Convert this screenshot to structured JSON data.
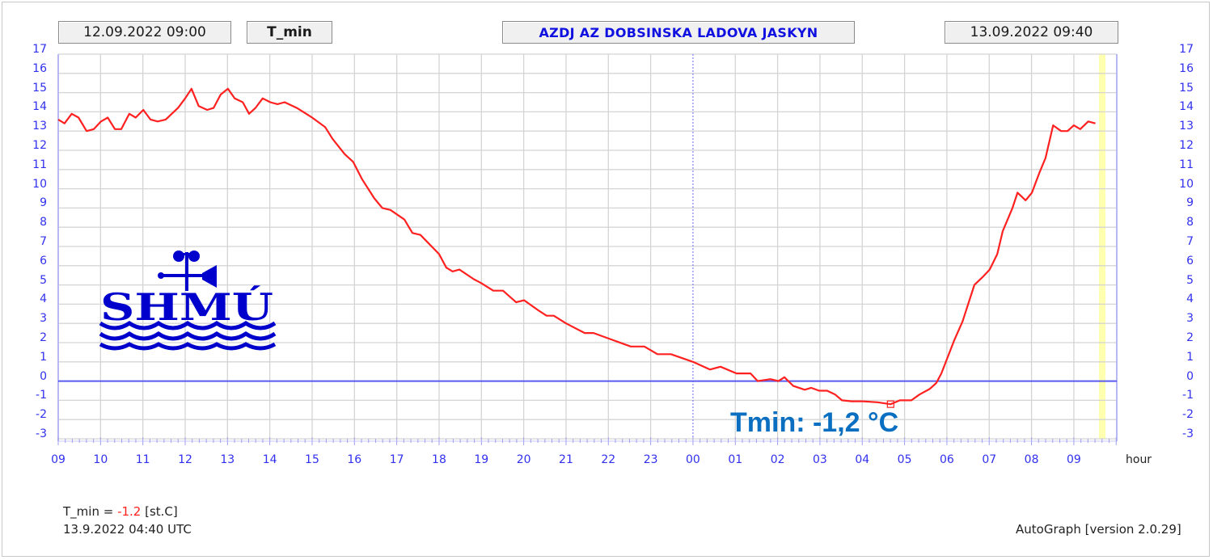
{
  "header": {
    "start_time": "12.09.2022 09:00",
    "parameter": "T_min",
    "station": "AZDJ AZ DOBSINSKA LADOVA JASKYN",
    "end_time": "13.09.2022 09:40"
  },
  "annotation": "Tmin: -1,2 °C",
  "footer": {
    "label_prefix": "T_min = ",
    "value": "-1.2",
    "unit": " [st.C]",
    "timestamp": "13.9.2022 04:40 UTC",
    "version": "AutoGraph [version 2.0.29]"
  },
  "logo": {
    "text": "SHMÚ",
    "color": "#0000cc"
  },
  "colors": {
    "series": "#ff2020",
    "axis_labels": "#3030ee",
    "zero_line": "#5a5af0",
    "grid": "#d4d4d4",
    "now_band": "#ffffb0",
    "annotation": "#0a6fc0"
  },
  "chart_data": {
    "type": "line",
    "title": "AZDJ AZ DOBSINSKA LADOVA JASKYN",
    "subtitle": "T_min",
    "xlabel": "hour",
    "ylabel": "st.C",
    "ylim": [
      -3,
      17
    ],
    "yticks": [
      17,
      16,
      15,
      14,
      13,
      12,
      11,
      10,
      9,
      8,
      7,
      6,
      5,
      4,
      3,
      2,
      1,
      0,
      -1,
      -2,
      -3
    ],
    "xticks": [
      "09",
      "10",
      "11",
      "12",
      "13",
      "14",
      "15",
      "16",
      "17",
      "18",
      "19",
      "20",
      "21",
      "22",
      "23",
      "00",
      "01",
      "02",
      "03",
      "04",
      "05",
      "06",
      "07",
      "08",
      "09"
    ],
    "x_range_hours": [
      0,
      25.03
    ],
    "x_unit": "hours since 12.09.2022 09:00",
    "grid": true,
    "legend": null,
    "minimum": {
      "label": "Tmin: -1,2 °C",
      "time": "13.9.2022 04:40 UTC",
      "value": -1.2,
      "x": 19.67
    },
    "now_marker_x": 24.67,
    "series": [
      {
        "name": "T_min",
        "points": [
          [
            0.0,
            13.6
          ],
          [
            0.15,
            13.4
          ],
          [
            0.32,
            13.9
          ],
          [
            0.48,
            13.7
          ],
          [
            0.67,
            13.0
          ],
          [
            0.84,
            13.1
          ],
          [
            1.01,
            13.5
          ],
          [
            1.17,
            13.7
          ],
          [
            1.34,
            13.1
          ],
          [
            1.49,
            13.1
          ],
          [
            1.68,
            13.9
          ],
          [
            1.83,
            13.7
          ],
          [
            2.01,
            14.1
          ],
          [
            2.18,
            13.6
          ],
          [
            2.35,
            13.5
          ],
          [
            2.54,
            13.6
          ],
          [
            2.83,
            14.2
          ],
          [
            3.0,
            14.7
          ],
          [
            3.15,
            15.2
          ],
          [
            3.32,
            14.3
          ],
          [
            3.52,
            14.1
          ],
          [
            3.67,
            14.2
          ],
          [
            3.84,
            14.9
          ],
          [
            4.01,
            15.2
          ],
          [
            4.17,
            14.7
          ],
          [
            4.36,
            14.5
          ],
          [
            4.51,
            13.9
          ],
          [
            4.66,
            14.2
          ],
          [
            4.83,
            14.7
          ],
          [
            5.01,
            14.5
          ],
          [
            5.18,
            14.4
          ],
          [
            5.35,
            14.5
          ],
          [
            5.64,
            14.2
          ],
          [
            6.0,
            13.7
          ],
          [
            6.31,
            13.2
          ],
          [
            6.48,
            12.6
          ],
          [
            6.77,
            11.8
          ],
          [
            6.97,
            11.4
          ],
          [
            7.18,
            10.5
          ],
          [
            7.47,
            9.5
          ],
          [
            7.66,
            9.0
          ],
          [
            7.85,
            8.9
          ],
          [
            8.18,
            8.4
          ],
          [
            8.37,
            7.7
          ],
          [
            8.56,
            7.6
          ],
          [
            9.0,
            6.6
          ],
          [
            9.17,
            5.9
          ],
          [
            9.32,
            5.7
          ],
          [
            9.48,
            5.8
          ],
          [
            9.82,
            5.3
          ],
          [
            9.99,
            5.1
          ],
          [
            10.28,
            4.7
          ],
          [
            10.51,
            4.7
          ],
          [
            10.82,
            4.1
          ],
          [
            11.01,
            4.2
          ],
          [
            11.33,
            3.7
          ],
          [
            11.54,
            3.4
          ],
          [
            11.71,
            3.4
          ],
          [
            12.0,
            3.0
          ],
          [
            12.44,
            2.5
          ],
          [
            12.65,
            2.5
          ],
          [
            13.15,
            2.1
          ],
          [
            13.53,
            1.8
          ],
          [
            13.85,
            1.8
          ],
          [
            14.16,
            1.4
          ],
          [
            14.48,
            1.4
          ],
          [
            15.0,
            1.0
          ],
          [
            15.4,
            0.6
          ],
          [
            15.65,
            0.75
          ],
          [
            16.03,
            0.4
          ],
          [
            16.36,
            0.4
          ],
          [
            16.53,
            0.0
          ],
          [
            16.83,
            0.1
          ],
          [
            17.02,
            0.0
          ],
          [
            17.16,
            0.2
          ],
          [
            17.37,
            -0.25
          ],
          [
            17.64,
            -0.45
          ],
          [
            17.79,
            -0.35
          ],
          [
            17.98,
            -0.5
          ],
          [
            18.17,
            -0.5
          ],
          [
            18.36,
            -0.7
          ],
          [
            18.52,
            -1.0
          ],
          [
            18.75,
            -1.05
          ],
          [
            19.01,
            -1.05
          ],
          [
            19.36,
            -1.1
          ],
          [
            19.67,
            -1.2
          ],
          [
            19.89,
            -1.0
          ],
          [
            20.16,
            -1.0
          ],
          [
            20.35,
            -0.7
          ],
          [
            20.6,
            -0.4
          ],
          [
            20.75,
            -0.1
          ],
          [
            20.87,
            0.4
          ],
          [
            21.17,
            2.1
          ],
          [
            21.37,
            3.1
          ],
          [
            21.65,
            5.0
          ],
          [
            21.84,
            5.4
          ],
          [
            22.01,
            5.8
          ],
          [
            22.19,
            6.6
          ],
          [
            22.32,
            7.8
          ],
          [
            22.55,
            9.0
          ],
          [
            22.67,
            9.8
          ],
          [
            22.86,
            9.4
          ],
          [
            23.01,
            9.8
          ],
          [
            23.18,
            10.8
          ],
          [
            23.33,
            11.6
          ],
          [
            23.51,
            13.3
          ],
          [
            23.7,
            13.0
          ],
          [
            23.85,
            13.0
          ],
          [
            24.0,
            13.3
          ],
          [
            24.15,
            13.1
          ],
          [
            24.34,
            13.5
          ],
          [
            24.51,
            13.4
          ]
        ]
      }
    ]
  }
}
